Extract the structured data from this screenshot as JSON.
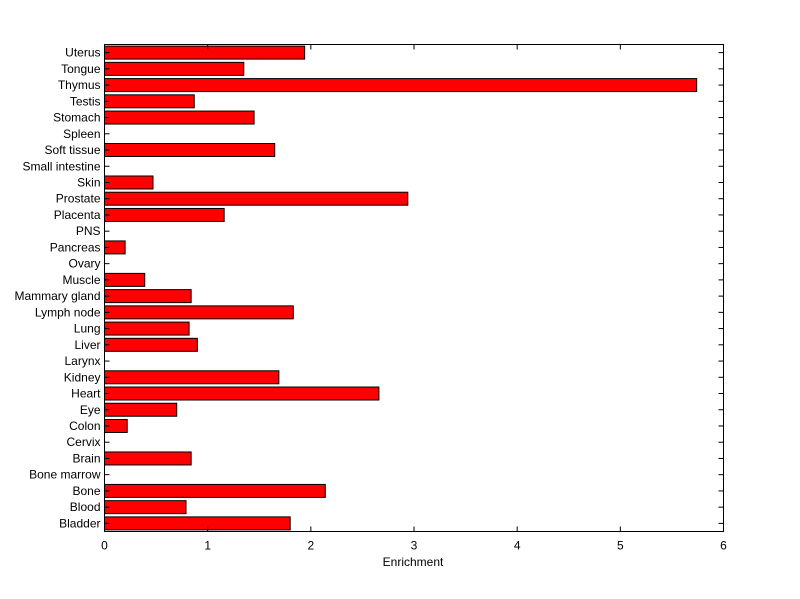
{
  "chart_data": {
    "type": "bar",
    "orientation": "horizontal",
    "xlabel": "Enrichment",
    "ylabel": "",
    "title": "",
    "xlim": [
      0,
      6
    ],
    "xticks": [
      "0",
      "1",
      "2",
      "3",
      "4",
      "5",
      "6"
    ],
    "grid": false,
    "bar_color": "#ff0000",
    "edge_color": "#000000",
    "categories": [
      "Uterus",
      "Tongue",
      "Thymus",
      "Testis",
      "Stomach",
      "Spleen",
      "Soft tissue",
      "Small intestine",
      "Skin",
      "Prostate",
      "Placenta",
      "PNS",
      "Pancreas",
      "Ovary",
      "Muscle",
      "Mammary gland",
      "Lymph node",
      "Lung",
      "Liver",
      "Larynx",
      "Kidney",
      "Heart",
      "Eye",
      "Colon",
      "Cervix",
      "Brain",
      "Bone marrow",
      "Bone",
      "Blood",
      "Bladder"
    ],
    "values": [
      1.94,
      1.35,
      5.74,
      0.87,
      1.45,
      0,
      1.65,
      0,
      0.47,
      2.94,
      1.16,
      0,
      0.2,
      0,
      0.39,
      0.84,
      1.83,
      0.82,
      0.9,
      0,
      1.69,
      2.66,
      0.7,
      0.22,
      0,
      0.84,
      0,
      2.14,
      0.79,
      1.8
    ]
  }
}
